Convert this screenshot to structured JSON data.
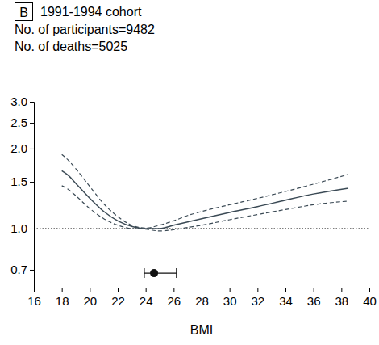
{
  "chart_data": {
    "type": "line",
    "panel": "B",
    "title": "1991-1994 cohort",
    "subtitle": [
      "No. of participants=9482",
      "No. of deaths=5025"
    ],
    "x_label": "BMI",
    "log": "y",
    "xlim": [
      16,
      40
    ],
    "xticks": [
      16,
      18,
      20,
      22,
      24,
      26,
      28,
      30,
      32,
      34,
      36,
      38,
      40
    ],
    "ylim": [
      0.6,
      3.0
    ],
    "yticks": [
      0.7,
      {
        "value": 1.0,
        "label": "1.0"
      },
      {
        "value": 1.5,
        "label": "1.5"
      },
      {
        "value": 2.0,
        "label": "2.0"
      },
      {
        "value": 2.5,
        "label": "2.5"
      },
      {
        "value": 3.0,
        "label": "3.0"
      }
    ],
    "reference_line": 1.0,
    "x": [
      18,
      18.5,
      19,
      20,
      21,
      22,
      23,
      24,
      25,
      26,
      27,
      28,
      30,
      32,
      34,
      36,
      38.5
    ],
    "series": [
      {
        "color": "#3b4a55",
        "line_style": "solid",
        "values": [
          1.65,
          1.58,
          1.48,
          1.3,
          1.16,
          1.07,
          1.02,
          1.0,
          1.0,
          1.03,
          1.06,
          1.09,
          1.15,
          1.21,
          1.28,
          1.35,
          1.42
        ]
      },
      {
        "color": "#3b4a55",
        "line_style": "dashed",
        "values": [
          1.9,
          1.8,
          1.68,
          1.44,
          1.24,
          1.11,
          1.03,
          1.005,
          1.03,
          1.07,
          1.12,
          1.16,
          1.23,
          1.3,
          1.38,
          1.47,
          1.6
        ]
      },
      {
        "color": "#3b4a55",
        "line_style": "dashed",
        "values": [
          1.45,
          1.4,
          1.33,
          1.19,
          1.09,
          1.03,
          1.0,
          0.995,
          0.98,
          0.99,
          1.01,
          1.03,
          1.08,
          1.13,
          1.18,
          1.23,
          1.27
        ]
      }
    ],
    "point": {
      "x": 24.6,
      "y": 0.68,
      "x_low": 23.9,
      "x_high": 26.2,
      "color": "#111111"
    }
  }
}
